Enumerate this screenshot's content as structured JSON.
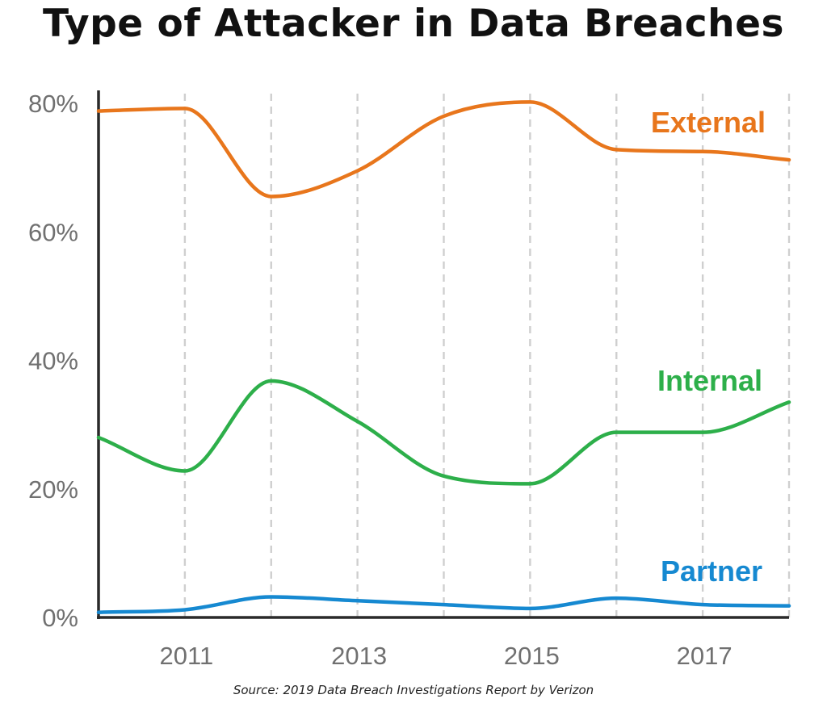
{
  "chart_data": {
    "type": "line",
    "title": "Type of Attacker in Data Breaches",
    "source": "Source: 2019 Data Breach Investigations Report by Verizon",
    "x": [
      2010,
      2011,
      2012,
      2013,
      2014,
      2015,
      2016,
      2017,
      2018
    ],
    "x_ticks": [
      2011,
      2013,
      2015,
      2017
    ],
    "x_tick_labels": [
      "2011",
      "2013",
      "2015",
      "2017"
    ],
    "xlim": [
      2010,
      2018
    ],
    "y_ticks": [
      0,
      20,
      40,
      60,
      80
    ],
    "y_tick_labels": [
      "0%",
      "20%",
      "40%",
      "60%",
      "80%"
    ],
    "ylim": [
      0,
      80
    ],
    "grid": "vertical dashed at each year",
    "legend": "direct labels at right end of lines",
    "series": [
      {
        "name": "External",
        "color": "#E8761C",
        "values": [
          78.8,
          79.2,
          65.5,
          69.5,
          78,
          80.2,
          72.8,
          72.5,
          71.2
        ]
      },
      {
        "name": "Internal",
        "color": "#2DAF4A",
        "values": [
          28,
          22.8,
          36.8,
          30.5,
          22,
          20.8,
          28.8,
          28.8,
          33.5
        ]
      },
      {
        "name": "Partner",
        "color": "#1689D1",
        "values": [
          0.8,
          1.2,
          3.2,
          2.6,
          2,
          1.4,
          3,
          2,
          1.8
        ]
      }
    ]
  }
}
